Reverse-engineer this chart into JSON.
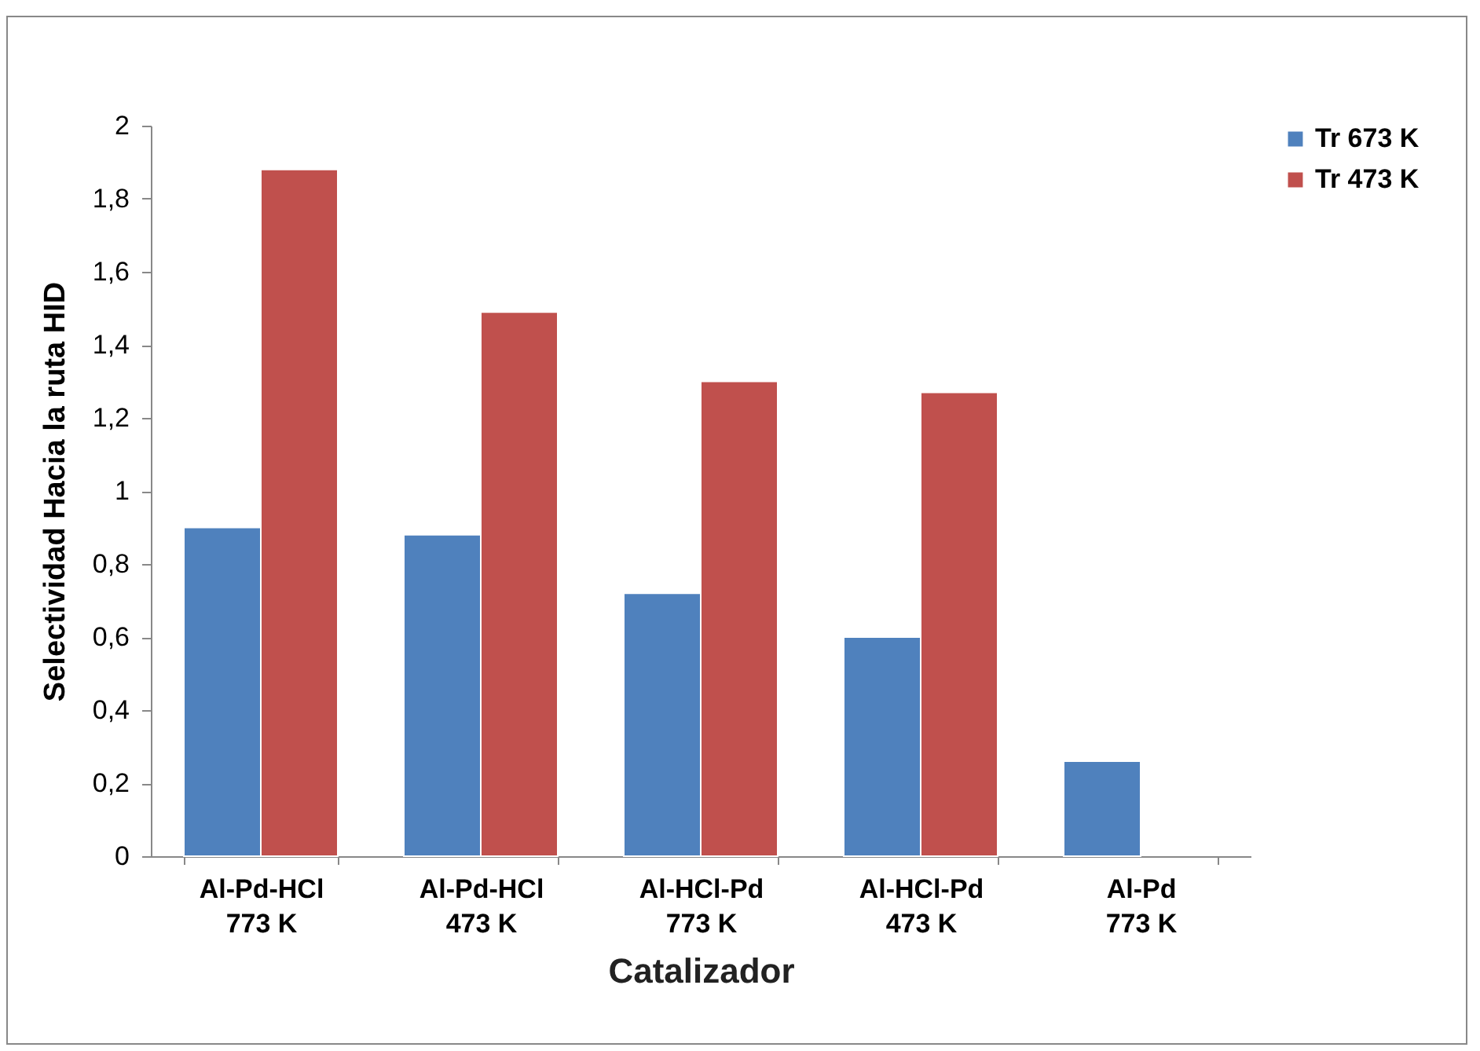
{
  "chart_data": {
    "type": "bar",
    "xlabel": "Catalizador",
    "ylabel": "Selectividad Hacia la ruta HID",
    "categories": [
      "Al-Pd-HCl\n773 K",
      "Al-Pd-HCl\n473 K",
      "Al-HCl-Pd\n773 K",
      "Al-HCl-Pd\n473 K",
      "Al-Pd\n773 K"
    ],
    "series": [
      {
        "name": "Tr  673 K",
        "color": "#4f81bd",
        "values": [
          0.9,
          0.88,
          0.72,
          0.6,
          0.26
        ]
      },
      {
        "name": "Tr  473 K",
        "color": "#c0504d",
        "values": [
          1.88,
          1.49,
          1.3,
          1.27,
          null
        ]
      }
    ],
    "ylim": [
      0,
      2
    ],
    "yticks": [
      0,
      {
        "value": 0.2,
        "label": "0,2"
      },
      {
        "value": 0.4,
        "label": "0,4"
      },
      {
        "value": 0.6,
        "label": "0,6"
      },
      {
        "value": 0.8,
        "label": "0,8"
      },
      1,
      {
        "value": 1.2,
        "label": "1,2"
      },
      {
        "value": 1.4,
        "label": "1,4"
      },
      {
        "value": 1.6,
        "label": "1,6"
      },
      {
        "value": 1.8,
        "label": "1,8"
      },
      2
    ],
    "grid": false,
    "legend": "right"
  }
}
